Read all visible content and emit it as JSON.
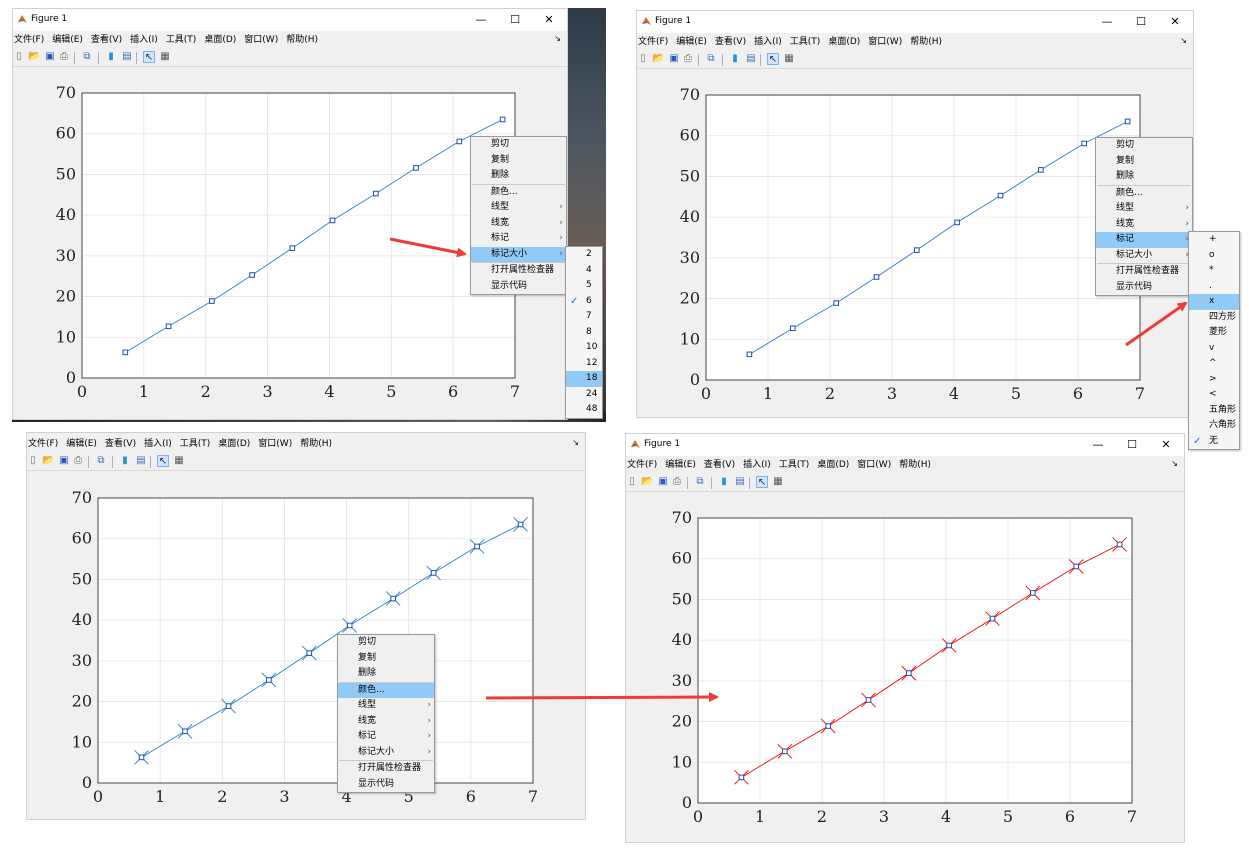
{
  "window_title": "Figure 1",
  "menu": [
    "文件(F)",
    "编辑(E)",
    "查看(V)",
    "插入(I)",
    "工具(T)",
    "桌面(D)",
    "窗口(W)",
    "帮助(H)"
  ],
  "window_controls": {
    "minimize": "—",
    "maximize": "☐",
    "close": "✕"
  },
  "dock_arrow": "↘",
  "toolbar_icons": [
    "new-figure-icon",
    "open-icon",
    "save-icon",
    "print-icon",
    "link-icon",
    "colorbar-icon",
    "legend-icon",
    "edit-plot-icon",
    "property-editor-icon"
  ],
  "context_menu": {
    "items": [
      "剪切",
      "复制",
      "删除",
      "颜色...",
      "线型",
      "线宽",
      "标记",
      "标记大小",
      "打开属性检查器",
      "显示代码"
    ],
    "has_submenu": [
      false,
      false,
      false,
      false,
      true,
      true,
      true,
      true,
      false,
      false
    ]
  },
  "marker_size_submenu": {
    "options": [
      "2",
      "4",
      "5",
      "6",
      "7",
      "8",
      "10",
      "12",
      "18",
      "24",
      "48"
    ],
    "checked": "6",
    "hover": "18"
  },
  "marker_submenu": {
    "options": [
      "+",
      "o",
      "*",
      ".",
      "x",
      "四方形",
      "菱形",
      "v",
      "^",
      ">",
      "<",
      "五角形",
      "六角形",
      "无"
    ],
    "checked": "无",
    "hover": "x"
  },
  "colors": {
    "line_default": "#2b7bd4",
    "line_red": "#ff0000",
    "marker_blue": "#1f4fae",
    "highlight": "#91c9f7",
    "arrow": "#f03a3a"
  },
  "chart_data": [
    {
      "type": "line",
      "panel": "top-left",
      "x": [
        0.7,
        1.4,
        2.1,
        2.75,
        3.4,
        4.05,
        4.75,
        5.4,
        6.1,
        6.8
      ],
      "series": [
        {
          "values": [
            6.3,
            12.7,
            18.9,
            25.3,
            31.9,
            38.7,
            45.3,
            51.6,
            58.1,
            63.5
          ],
          "color": "#2b7bd4",
          "marker": "square"
        }
      ],
      "xlim": [
        0,
        7
      ],
      "ylim": [
        0,
        70
      ],
      "xticks": [
        "0",
        "1",
        "2",
        "3",
        "4",
        "5",
        "6",
        "7"
      ],
      "yticks": [
        "0",
        "10",
        "20",
        "30",
        "40",
        "50",
        "60",
        "70"
      ],
      "grid": true
    },
    {
      "type": "line",
      "panel": "top-right",
      "x": [
        0.7,
        1.4,
        2.1,
        2.75,
        3.4,
        4.05,
        4.75,
        5.4,
        6.1,
        6.8
      ],
      "series": [
        {
          "values": [
            6.3,
            12.7,
            18.9,
            25.3,
            31.9,
            38.7,
            45.3,
            51.6,
            58.1,
            63.5
          ],
          "color": "#2b7bd4",
          "marker": "square"
        }
      ],
      "xlim": [
        0,
        7
      ],
      "ylim": [
        0,
        70
      ],
      "xticks": [
        "0",
        "1",
        "2",
        "3",
        "4",
        "5",
        "6",
        "7"
      ],
      "yticks": [
        "0",
        "10",
        "20",
        "30",
        "40",
        "50",
        "60",
        "70"
      ],
      "grid": true
    },
    {
      "type": "line",
      "panel": "bottom-left",
      "x": [
        0.7,
        1.4,
        2.1,
        2.75,
        3.4,
        4.05,
        4.75,
        5.4,
        6.1,
        6.8
      ],
      "series": [
        {
          "values": [
            6.3,
            12.7,
            18.9,
            25.3,
            31.9,
            38.7,
            45.3,
            51.6,
            58.1,
            63.5
          ],
          "color": "#2b7bd4",
          "marker": "square+x"
        }
      ],
      "xlim": [
        0,
        7
      ],
      "ylim": [
        0,
        70
      ],
      "xticks": [
        "0",
        "1",
        "2",
        "3",
        "4",
        "5",
        "6",
        "7"
      ],
      "yticks": [
        "0",
        "10",
        "20",
        "30",
        "40",
        "50",
        "60",
        "70"
      ],
      "grid": true
    },
    {
      "type": "line",
      "panel": "bottom-right",
      "x": [
        0.7,
        1.4,
        2.1,
        2.75,
        3.4,
        4.05,
        4.75,
        5.4,
        6.1,
        6.8
      ],
      "series": [
        {
          "values": [
            6.3,
            12.7,
            18.9,
            25.3,
            31.9,
            38.7,
            45.3,
            51.6,
            58.1,
            63.5
          ],
          "color": "#ff0000",
          "marker": "square+x"
        }
      ],
      "xlim": [
        0,
        7
      ],
      "ylim": [
        0,
        70
      ],
      "xticks": [
        "0",
        "1",
        "2",
        "3",
        "4",
        "5",
        "6",
        "7"
      ],
      "yticks": [
        "0",
        "10",
        "20",
        "30",
        "40",
        "50",
        "60",
        "70"
      ],
      "grid": true
    }
  ]
}
